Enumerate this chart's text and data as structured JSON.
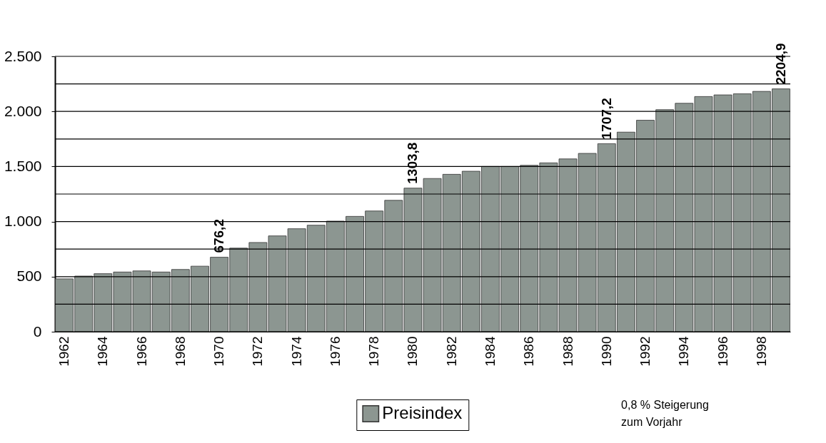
{
  "chart_data": {
    "type": "bar",
    "categories": [
      "1962",
      null,
      "1964",
      null,
      "1966",
      null,
      "1968",
      null,
      "1970",
      null,
      "1972",
      null,
      "1974",
      null,
      "1976",
      null,
      "1978",
      null,
      "1980",
      null,
      "1982",
      null,
      "1984",
      null,
      "1986",
      null,
      "1988",
      null,
      "1990",
      null,
      "1992",
      null,
      "1994",
      null,
      "1996",
      null,
      "1998",
      null
    ],
    "series": [
      {
        "name": "Preisindex",
        "color": "#8c9691",
        "values": [
          480,
          505,
          527,
          542,
          552,
          542,
          565,
          595,
          676.2,
          759,
          810,
          870,
          935,
          967,
          1004,
          1047,
          1096,
          1193,
          1303.8,
          1391,
          1429,
          1457,
          1500,
          1500,
          1511,
          1533,
          1569,
          1619,
          1707.2,
          1812,
          1920,
          2016,
          2074,
          2135,
          2150,
          2160,
          2182,
          2204.9
        ]
      }
    ],
    "value_labels": [
      null,
      null,
      null,
      null,
      null,
      null,
      null,
      null,
      "676,2",
      null,
      null,
      null,
      null,
      null,
      null,
      null,
      null,
      null,
      "1303,8",
      null,
      null,
      null,
      null,
      null,
      null,
      null,
      null,
      null,
      "1707,2",
      null,
      null,
      null,
      null,
      null,
      null,
      null,
      null,
      "2204,9"
    ],
    "ylim": [
      0,
      2500
    ],
    "yticks": [
      0,
      {
        "value": 250,
        "label": null
      },
      500,
      {
        "value": 750,
        "label": null
      },
      {
        "value": 1000,
        "label": "1.000"
      },
      {
        "value": 1250,
        "label": null
      },
      {
        "value": 1500,
        "label": "1.500"
      },
      {
        "value": 1750,
        "label": null
      },
      {
        "value": 2000,
        "label": "2.000"
      },
      {
        "value": 2250,
        "label": null
      },
      {
        "value": 2500,
        "label": "2.500"
      }
    ],
    "grid": "y",
    "legend": "bottom",
    "annotations": [
      "0,8 % Steigerung\nzum Vorjahr"
    ]
  }
}
